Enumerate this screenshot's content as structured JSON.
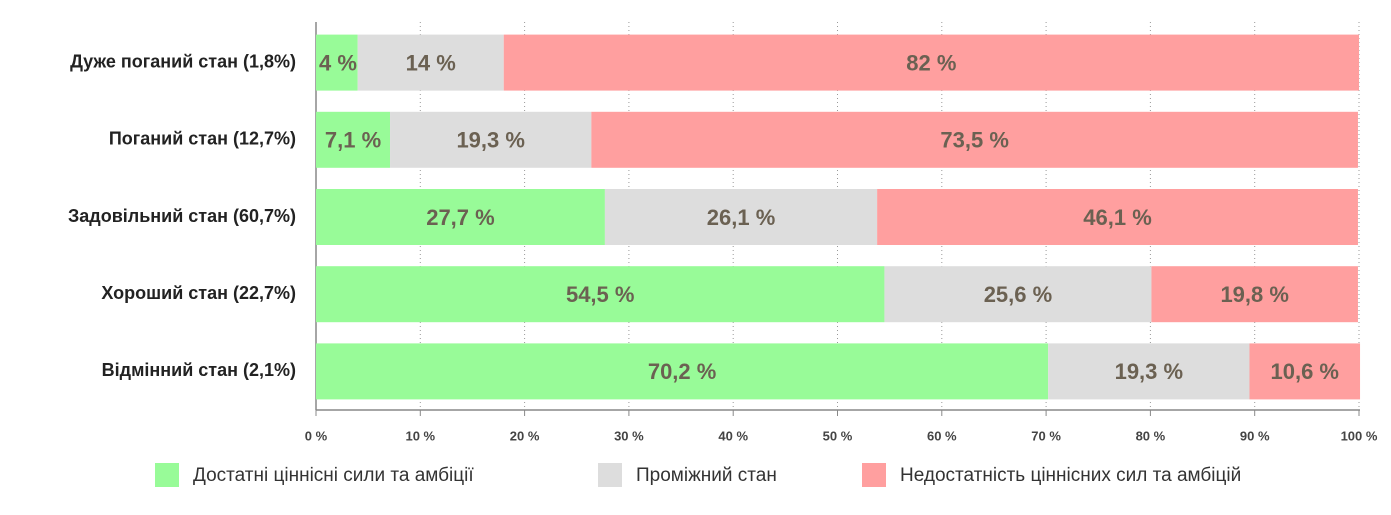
{
  "chart_data": {
    "type": "bar",
    "orientation": "horizontal",
    "stacked": true,
    "categories": [
      "Дуже поганий стан (1,8%)",
      "Поганий стан (12,7%)",
      "Задовільний стан (60,7%)",
      "Хороший стан (22,7%)",
      "Відмінний стан (2,1%)"
    ],
    "series": [
      {
        "name": "Достатні ціннісні сили та амбіції",
        "color": "#98fb98",
        "values": [
          4,
          7.1,
          27.7,
          54.5,
          70.2
        ],
        "value_labels": [
          "4 %",
          "7,1 %",
          "27,7 %",
          "54,5 %",
          "70,2 %"
        ]
      },
      {
        "name": "Проміжний стан",
        "color": "#dddddd",
        "values": [
          14,
          19.3,
          26.1,
          25.6,
          19.3
        ],
        "value_labels": [
          "14 %",
          "19,3 %",
          "26,1 %",
          "25,6 %",
          "19,3 %"
        ]
      },
      {
        "name": "Недостатність ціннісних сил та амбіцій",
        "color": "#ff9f9f",
        "values": [
          82,
          73.5,
          46.1,
          19.8,
          10.6
        ],
        "value_labels": [
          "82 %",
          "73,5 %",
          "46,1 %",
          "19,8 %",
          "10,6 %"
        ]
      }
    ],
    "xlim": [
      0,
      100
    ],
    "xticks": [
      {
        "value": 0,
        "label": "0 %"
      },
      {
        "value": 10,
        "label": "10 %"
      },
      {
        "value": 20,
        "label": "20 %"
      },
      {
        "value": 30,
        "label": "30 %"
      },
      {
        "value": 40,
        "label": "40 %"
      },
      {
        "value": 50,
        "label": "50 %"
      },
      {
        "value": 60,
        "label": "60 %"
      },
      {
        "value": 70,
        "label": "70 %"
      },
      {
        "value": 80,
        "label": "80 %"
      },
      {
        "value": 90,
        "label": "90 %"
      },
      {
        "value": 100,
        "label": "100 %"
      }
    ],
    "grid": true,
    "legend": "bottom"
  }
}
